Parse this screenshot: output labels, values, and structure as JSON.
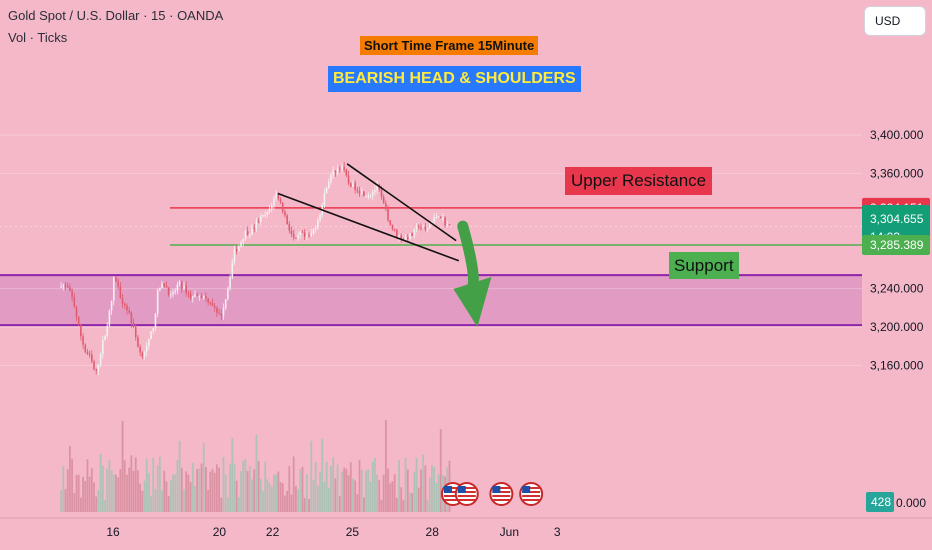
{
  "header": {
    "symbol": "Gold Spot / U.S. Dollar · 15 · OANDA",
    "indicator": "Vol · Ticks",
    "currency": "USD"
  },
  "annotations": {
    "timeframe": "Short Time Frame 15Minute",
    "pattern": "BEARISH HEAD & SHOULDERS",
    "resistance": "Upper Resistance",
    "support": "Support"
  },
  "price_labels": {
    "resistance": "3,324.151",
    "last": "3,304.655",
    "countdown": "14:03",
    "support": "3,285.389",
    "volume": "428"
  },
  "colors": {
    "background": "#f5b8c9",
    "resistance": "#e8364c",
    "support": "#4caf50",
    "zone": "#8e24aa",
    "arrow": "#43a047",
    "candle_up": "#f2f2f2",
    "candle_down": "#e05a70",
    "volume_up": "#9ec4b2",
    "volume_down": "#d58a9a",
    "timeframe_bg": "#f57c00",
    "pattern_bg": "#2979ff",
    "pattern_text": "#ffeb3b"
  },
  "chart_data": {
    "type": "candlestick",
    "y_ticks": [
      "3,400.000",
      "3,360.000",
      "3,240.000",
      "3,200.000",
      "3,160.000"
    ],
    "y_tick_values": [
      3400,
      3360,
      3240,
      3200,
      3160
    ],
    "bottom_tick_fragment": "0.000",
    "x_ticks": [
      "16",
      "20",
      "22",
      "25",
      "28",
      "Jun",
      "3"
    ],
    "ylim": [
      3114,
      3435
    ],
    "levels": {
      "resistance": 3324.151,
      "support": 3285.389,
      "last": 3304.655
    },
    "zone": [
      3202,
      3254
    ],
    "channel": {
      "upper": [
        [
          24.8,
          3370
        ],
        [
          28.9,
          3290
        ]
      ],
      "lower": [
        [
          22.2,
          3339
        ],
        [
          29.0,
          3269
        ]
      ]
    },
    "price_path": [
      [
        14.05,
        3245
      ],
      [
        14.3,
        3240
      ],
      [
        14.5,
        3228
      ],
      [
        14.75,
        3195
      ],
      [
        14.95,
        3175
      ],
      [
        15.15,
        3168
      ],
      [
        15.35,
        3150
      ],
      [
        15.6,
        3182
      ],
      [
        15.8,
        3205
      ],
      [
        15.95,
        3228
      ],
      [
        16.05,
        3255
      ],
      [
        16.3,
        3230
      ],
      [
        16.6,
        3215
      ],
      [
        16.85,
        3190
      ],
      [
        17.05,
        3170
      ],
      [
        17.3,
        3180
      ],
      [
        17.55,
        3205
      ],
      [
        17.7,
        3240
      ],
      [
        17.95,
        3245
      ],
      [
        18.2,
        3230
      ],
      [
        18.45,
        3245
      ],
      [
        18.7,
        3240
      ],
      [
        18.95,
        3230
      ],
      [
        19.2,
        3235
      ],
      [
        19.45,
        3230
      ],
      [
        19.7,
        3226
      ],
      [
        19.95,
        3210
      ],
      [
        20.1,
        3215
      ],
      [
        20.3,
        3238
      ],
      [
        20.55,
        3278
      ],
      [
        20.75,
        3285
      ],
      [
        20.95,
        3298
      ],
      [
        21.2,
        3300
      ],
      [
        21.5,
        3312
      ],
      [
        21.8,
        3318
      ],
      [
        22.0,
        3330
      ],
      [
        22.15,
        3340
      ],
      [
        22.35,
        3325
      ],
      [
        22.6,
        3304
      ],
      [
        22.85,
        3288
      ],
      [
        23.05,
        3298
      ],
      [
        23.25,
        3292
      ],
      [
        23.45,
        3296
      ],
      [
        23.65,
        3308
      ],
      [
        23.85,
        3325
      ],
      [
        24.05,
        3350
      ],
      [
        24.3,
        3362
      ],
      [
        24.6,
        3368
      ],
      [
        24.85,
        3350
      ],
      [
        25.15,
        3345
      ],
      [
        25.35,
        3340
      ],
      [
        25.65,
        3338
      ],
      [
        25.95,
        3346
      ],
      [
        26.2,
        3325
      ],
      [
        26.45,
        3305
      ],
      [
        26.7,
        3295
      ],
      [
        26.95,
        3292
      ],
      [
        27.25,
        3296
      ],
      [
        27.5,
        3306
      ],
      [
        27.75,
        3300
      ],
      [
        28.0,
        3310
      ],
      [
        28.25,
        3318
      ],
      [
        28.5,
        3308
      ],
      [
        28.65,
        3304.655
      ]
    ],
    "projection_arrow": [
      [
        29.15,
        3305
      ],
      [
        29.7,
        3200
      ]
    ],
    "events_x": [
      28.78,
      29.3,
      30.6,
      31.72
    ]
  }
}
